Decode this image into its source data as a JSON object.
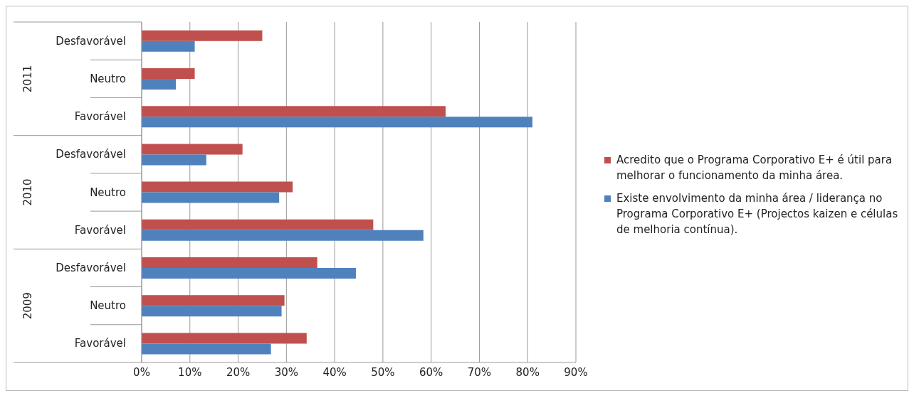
{
  "chart_data": {
    "type": "bar",
    "orientation": "horizontal",
    "categories": [
      "Desfavorável",
      "Neutro",
      "Favorável",
      "Desfavorável",
      "Neutro",
      "Favorável",
      "Desfavorável",
      "Neutro",
      "Favorável"
    ],
    "annotations": [
      "2011",
      "2010",
      "2009"
    ],
    "series": [
      {
        "name": "Acredito que o Programa Corporativo E+ é útil para melhorar o funcionamento da minha área.",
        "color": "#c0504d",
        "values": [
          25.0,
          11.0,
          63.0,
          20.9,
          31.3,
          48.0,
          36.4,
          29.6,
          34.2
        ]
      },
      {
        "name": "Existe envolvimento da minha área / liderança no Programa Corporativo E+ (Projectos kaizen e células de melhoria contínua).",
        "color": "#4f81bd",
        "values": [
          11.0,
          7.1,
          81.0,
          13.4,
          28.5,
          58.4,
          44.4,
          29.0,
          26.8
        ]
      }
    ],
    "xlim": [
      0,
      90
    ],
    "xticks": [
      {
        "value": 0,
        "label": "0%"
      },
      {
        "value": 10,
        "label": "10%"
      },
      {
        "value": 20,
        "label": "20%"
      },
      {
        "value": 30,
        "label": "30%"
      },
      {
        "value": 40,
        "label": "40%"
      },
      {
        "value": 50,
        "label": "50%"
      },
      {
        "value": 60,
        "label": "60%"
      },
      {
        "value": 70,
        "label": "70%"
      },
      {
        "value": 80,
        "label": "80%"
      },
      {
        "value": 90,
        "label": "90%"
      }
    ],
    "grid": "x",
    "legend": "right"
  }
}
